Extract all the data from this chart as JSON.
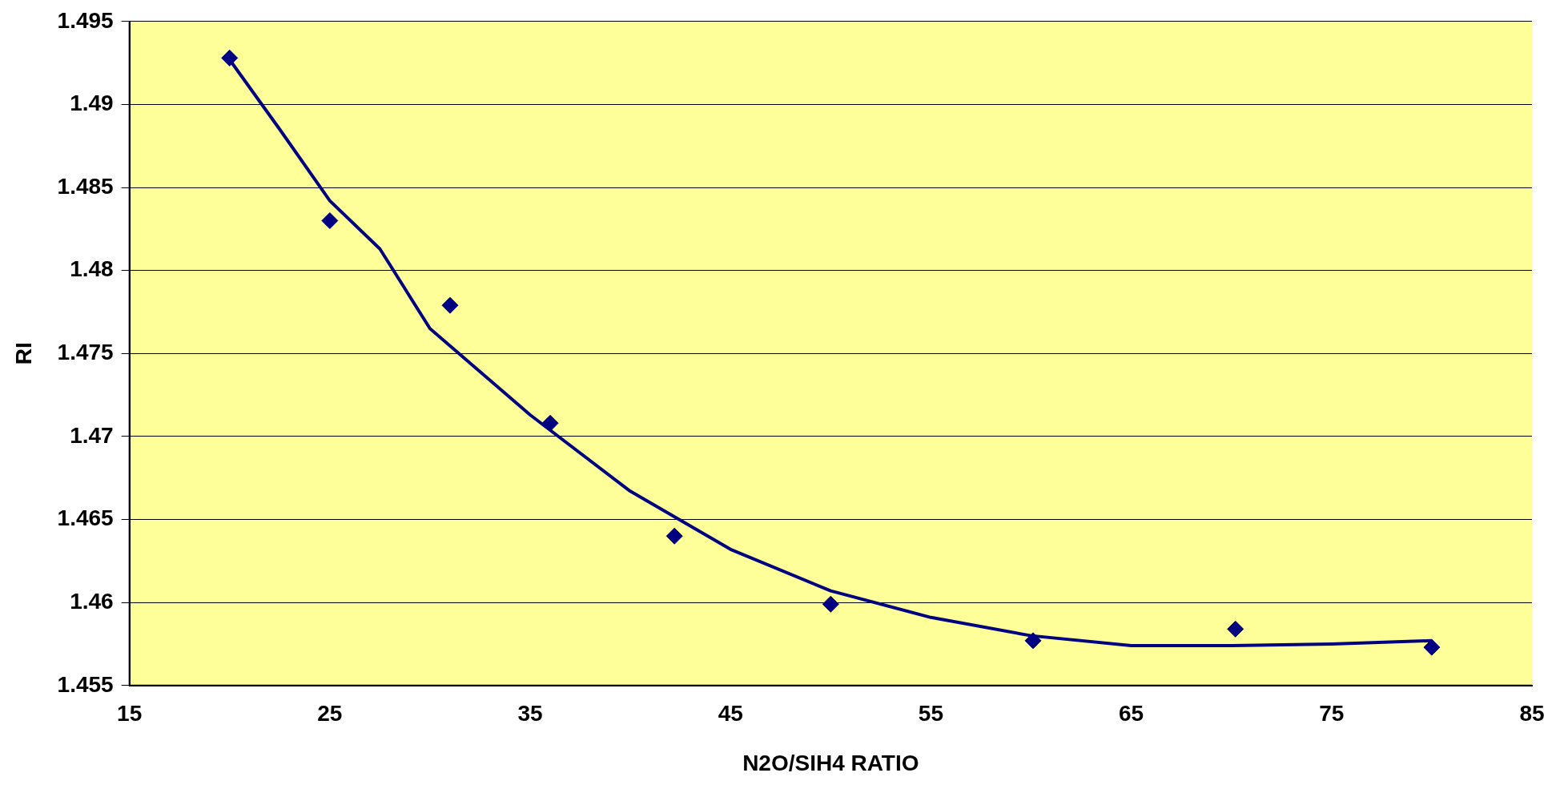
{
  "chart_data": {
    "type": "scatter",
    "xlabel": "N2O/SIH4 RATIO",
    "ylabel": "RI",
    "xlim": [
      15,
      85
    ],
    "xticks": [
      15,
      25,
      35,
      45,
      55,
      65,
      75,
      85
    ],
    "ylim": [
      1.455,
      1.495
    ],
    "yticks": [
      1.455,
      1.46,
      1.465,
      1.47,
      1.475,
      1.48,
      1.485,
      1.49,
      1.495
    ],
    "grid": "y",
    "legend": false,
    "series": [
      {
        "marker": "diamond",
        "color": "#000080",
        "x": [
          20,
          25,
          31,
          36,
          42.2,
          50,
          60.1,
          70.2,
          80
        ],
        "values": [
          1.4928,
          1.483,
          1.4779,
          1.4708,
          1.464,
          1.4599,
          1.4577,
          1.4584,
          1.4573
        ]
      },
      {
        "type": "line",
        "marker": "none",
        "color": "#000080",
        "x": [
          20,
          22.5,
          25,
          27.5,
          30,
          35,
          40,
          45,
          50,
          55,
          60,
          65,
          70,
          75,
          80
        ],
        "values": [
          1.4927,
          1.4885,
          1.4842,
          1.4813,
          1.4765,
          1.4713,
          1.4667,
          1.4632,
          1.4607,
          1.4591,
          1.458,
          1.4574,
          1.4574,
          1.4575,
          1.4577
        ]
      }
    ]
  }
}
